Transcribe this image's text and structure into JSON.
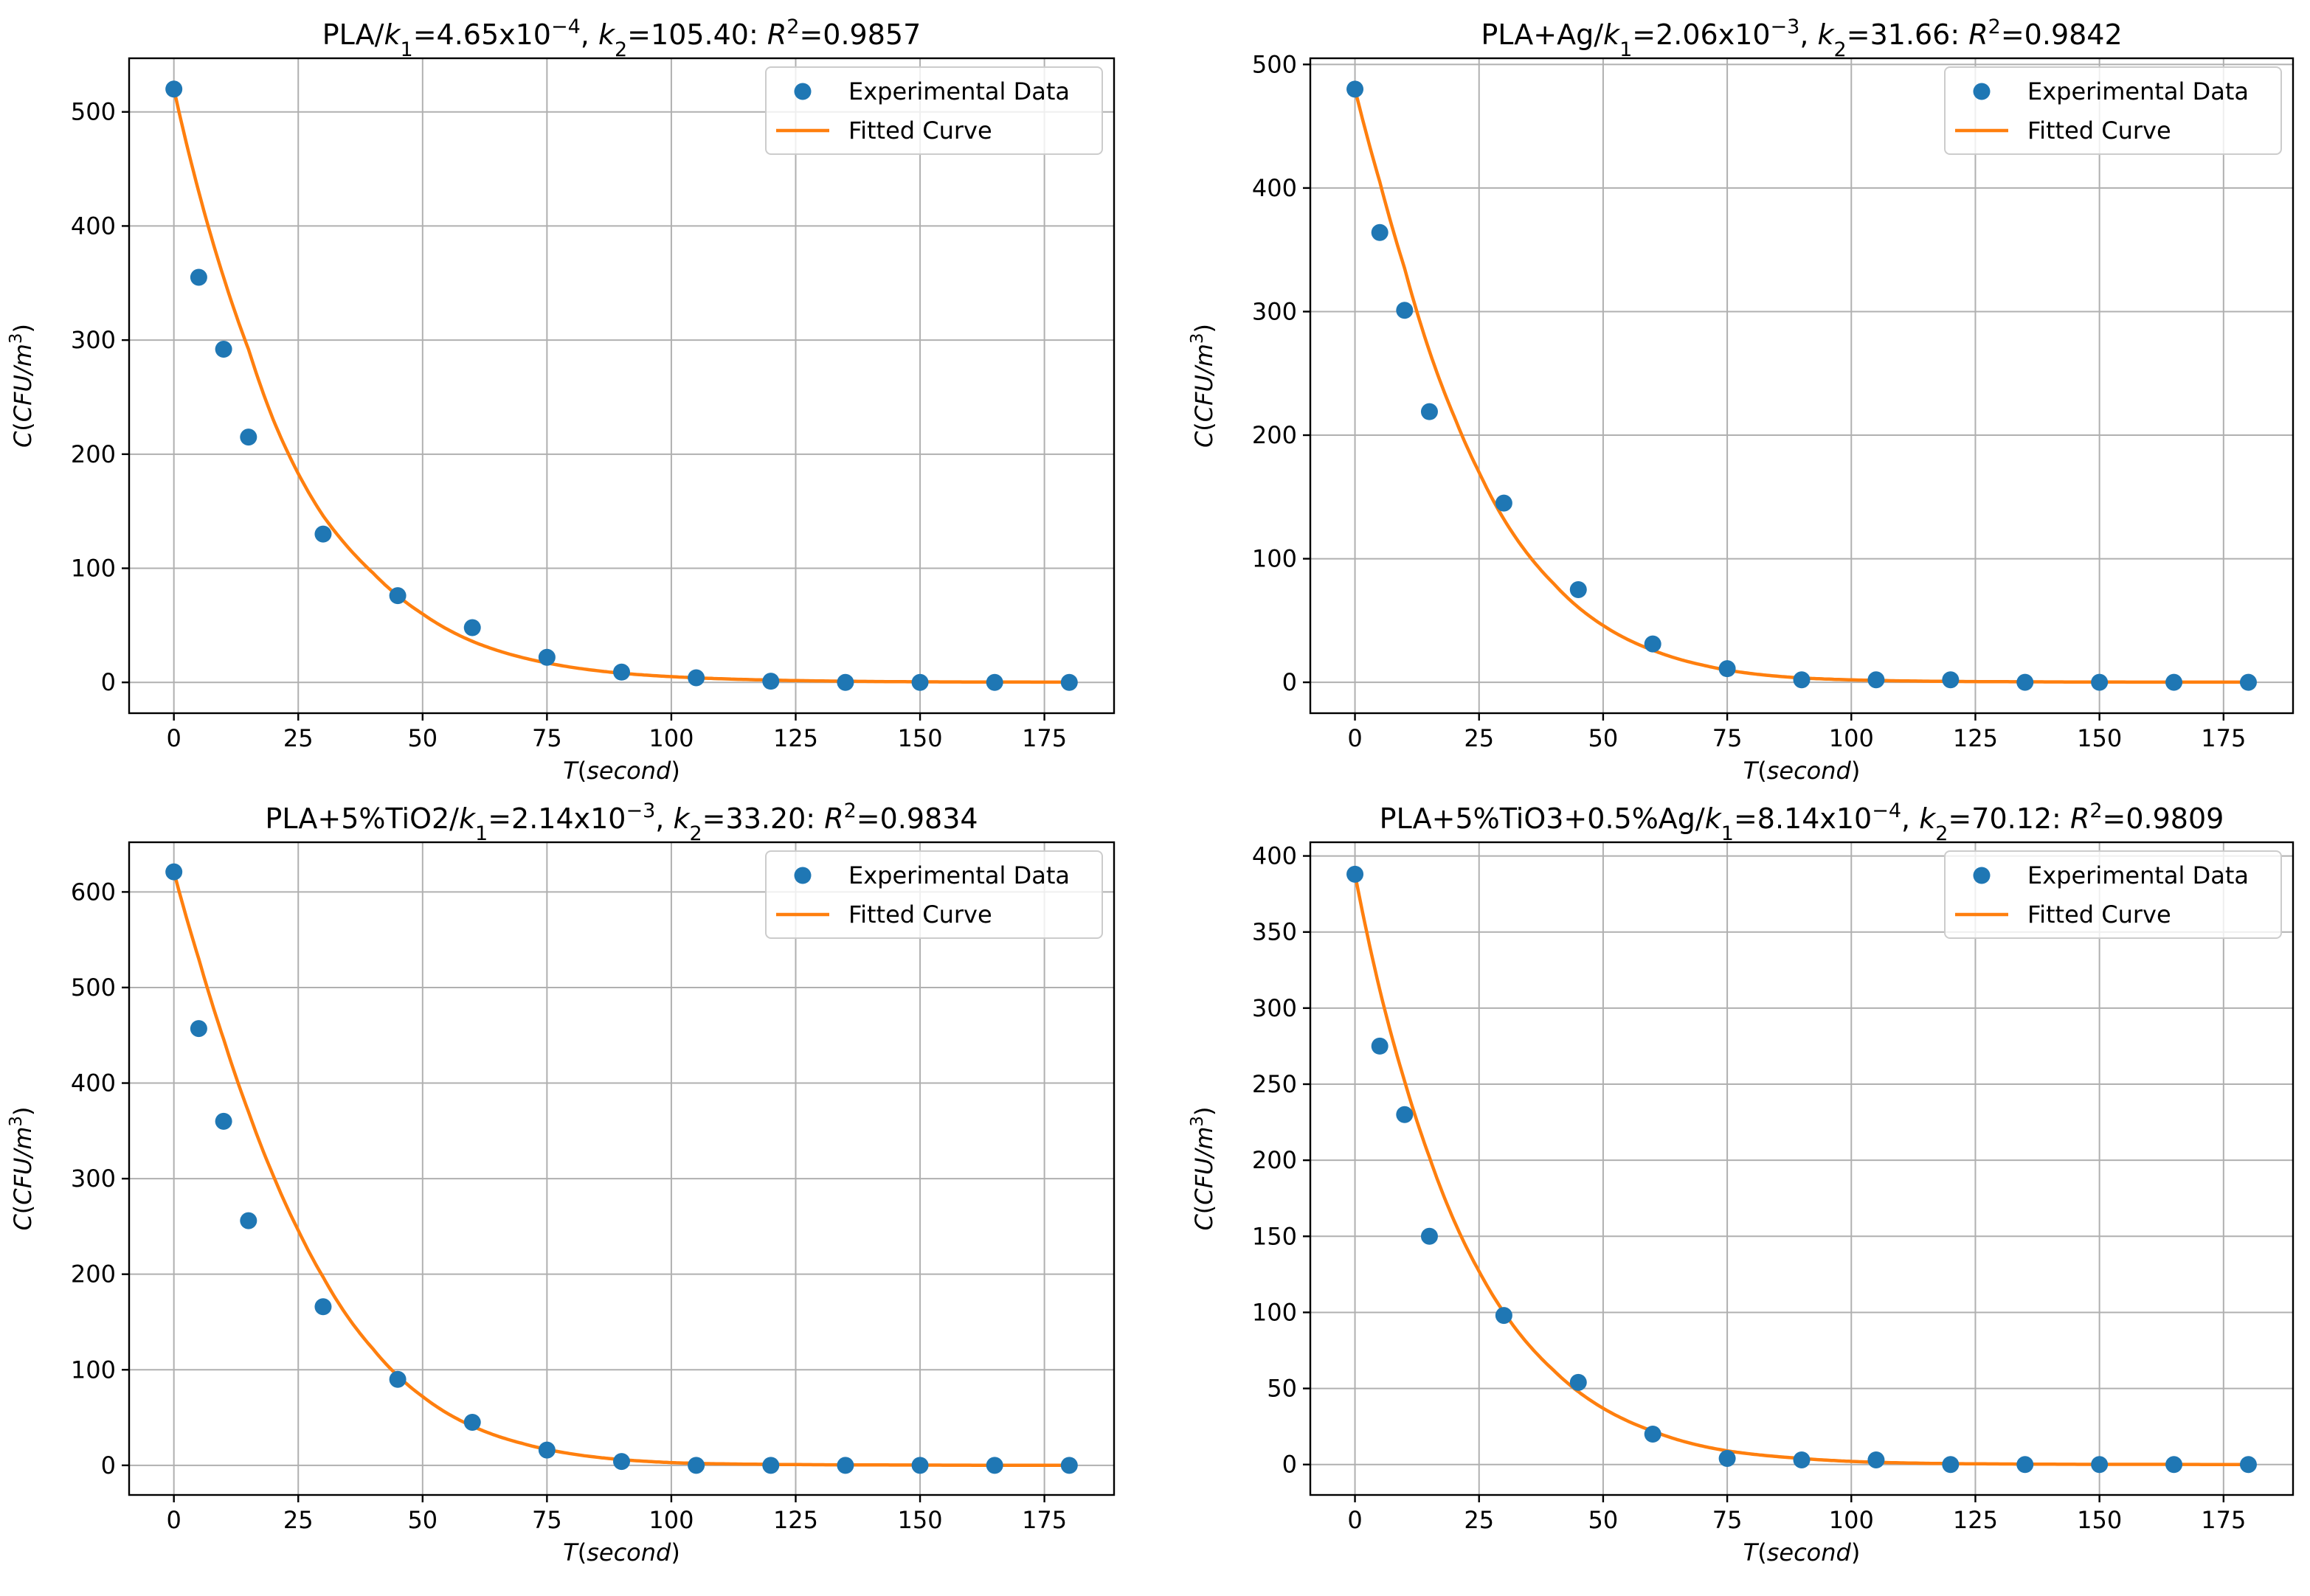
{
  "chart_data": [
    {
      "type": "scatter",
      "title": "PLA/k₁=4.65x10⁻⁴, k₂=105.40: R²=0.9857",
      "title_parts": {
        "pre": "PLA/",
        "k1": "4.65x10",
        "k1_exp": "−4",
        "k2": "105.40",
        "r2": "0.9857"
      },
      "xlabel": "T(second)",
      "ylabel": "C(CFU/m³)",
      "xlim": [
        -9,
        189
      ],
      "ylim": [
        -27,
        547
      ],
      "xticks": [
        0,
        25,
        50,
        75,
        100,
        125,
        150,
        175
      ],
      "yticks": [
        0,
        100,
        200,
        300,
        400,
        500
      ],
      "grid": true,
      "legend": "top-right",
      "series": [
        {
          "name": "Experimental Data",
          "kind": "scatter",
          "color": "#1f77b4",
          "x": [
            0,
            5,
            10,
            15,
            30,
            45,
            60,
            75,
            90,
            105,
            120,
            135,
            150,
            165,
            180
          ],
          "y": [
            520,
            355,
            292,
            215,
            130,
            76,
            48,
            22,
            9,
            4,
            1,
            0,
            0,
            0,
            0
          ]
        },
        {
          "name": "Fitted Curve",
          "kind": "line",
          "color": "#ff7f0e",
          "x": [
            0,
            5,
            10,
            15,
            20,
            25,
            30,
            40,
            50,
            60,
            75,
            90,
            105,
            120,
            135,
            150,
            165,
            180
          ],
          "y": [
            520,
            430,
            355,
            292,
            230,
            183,
            146,
            96,
            60,
            36,
            17,
            8,
            4,
            2,
            1,
            0.5,
            0.3,
            0.2
          ]
        }
      ]
    },
    {
      "type": "scatter",
      "title": "PLA+Ag/k₁=2.06x10⁻³, k₂=31.66: R²=0.9842",
      "title_parts": {
        "pre": "PLA+Ag/",
        "k1": "2.06x10",
        "k1_exp": "−3",
        "k2": "31.66",
        "r2": "0.9842"
      },
      "xlabel": "T(second)",
      "ylabel": "C(CFU/m³)",
      "xlim": [
        -9,
        189
      ],
      "ylim": [
        -25,
        505
      ],
      "xticks": [
        0,
        25,
        50,
        75,
        100,
        125,
        150,
        175
      ],
      "yticks": [
        0,
        100,
        200,
        300,
        400,
        500
      ],
      "grid": true,
      "legend": "top-right",
      "series": [
        {
          "name": "Experimental Data",
          "kind": "scatter",
          "color": "#1f77b4",
          "x": [
            0,
            5,
            10,
            15,
            30,
            45,
            60,
            75,
            90,
            105,
            120,
            135,
            150,
            165,
            180
          ],
          "y": [
            480,
            364,
            301,
            219,
            145,
            75,
            31,
            11,
            2,
            2,
            2,
            0,
            0,
            0,
            0
          ]
        },
        {
          "name": "Fitted Curve",
          "kind": "line",
          "color": "#ff7f0e",
          "x": [
            0,
            5,
            10,
            15,
            20,
            25,
            30,
            40,
            50,
            60,
            70,
            80,
            90,
            105,
            120,
            135,
            150,
            165,
            180
          ],
          "y": [
            480,
            405,
            335,
            268,
            215,
            170,
            132,
            80,
            46,
            26,
            14,
            7,
            3.5,
            1.5,
            0.7,
            0.4,
            0.2,
            0.1,
            0.1
          ]
        }
      ]
    },
    {
      "type": "scatter",
      "title": "PLA+5%TiO2/k₁=2.14x10⁻³, k₂=33.20: R²=0.9834",
      "title_parts": {
        "pre": "PLA+5%TiO2/",
        "k1": "2.14x10",
        "k1_exp": "−3",
        "k2": "33.20",
        "r2": "0.9834"
      },
      "xlabel": "T(second)",
      "ylabel": "C(CFU/m³)",
      "xlim": [
        -9,
        189
      ],
      "ylim": [
        -31,
        652
      ],
      "xticks": [
        0,
        25,
        50,
        75,
        100,
        125,
        150,
        175
      ],
      "yticks": [
        0,
        100,
        200,
        300,
        400,
        500,
        600
      ],
      "grid": true,
      "legend": "top-right",
      "series": [
        {
          "name": "Experimental Data",
          "kind": "scatter",
          "color": "#1f77b4",
          "x": [
            0,
            5,
            10,
            15,
            30,
            45,
            60,
            75,
            90,
            105,
            120,
            135,
            150,
            165,
            180
          ],
          "y": [
            621,
            457,
            360,
            256,
            166,
            90,
            45,
            16,
            4,
            0,
            0,
            0,
            0,
            0,
            0
          ]
        },
        {
          "name": "Fitted Curve",
          "kind": "line",
          "color": "#ff7f0e",
          "x": [
            0,
            5,
            10,
            15,
            20,
            25,
            30,
            40,
            50,
            60,
            70,
            80,
            90,
            105,
            120,
            135,
            150,
            165,
            180
          ],
          "y": [
            621,
            530,
            446,
            370,
            303,
            246,
            197,
            122,
            72,
            41,
            23,
            12,
            6,
            2,
            1,
            0.5,
            0.3,
            0.1,
            0.1
          ]
        }
      ]
    },
    {
      "type": "scatter",
      "title": "PLA+5%TiO3+0.5%Ag/k₁=8.14x10⁻⁴, k₂=70.12: R²=0.9809",
      "title_parts": {
        "pre": "PLA+5%TiO3+0.5%Ag/",
        "k1": "8.14x10",
        "k1_exp": "−4",
        "k2": "70.12",
        "r2": "0.9809"
      },
      "xlabel": "T(second)",
      "ylabel": "C(CFU/m³)",
      "xlim": [
        -9,
        189
      ],
      "ylim": [
        -20,
        409
      ],
      "xticks": [
        0,
        25,
        50,
        75,
        100,
        125,
        150,
        175
      ],
      "yticks": [
        0,
        50,
        100,
        150,
        200,
        250,
        300,
        350,
        400
      ],
      "grid": true,
      "legend": "top-right",
      "series": [
        {
          "name": "Experimental Data",
          "kind": "scatter",
          "color": "#1f77b4",
          "x": [
            0,
            5,
            10,
            15,
            30,
            45,
            60,
            75,
            90,
            105,
            120,
            135,
            150,
            165,
            180
          ],
          "y": [
            388,
            275,
            230,
            150,
            98,
            54,
            20,
            4,
            3,
            3,
            0,
            0,
            0,
            0,
            0
          ]
        },
        {
          "name": "Fitted Curve",
          "kind": "line",
          "color": "#ff7f0e",
          "x": [
            0,
            5,
            10,
            15,
            20,
            25,
            30,
            40,
            50,
            60,
            75,
            90,
            105,
            120,
            135,
            150,
            165,
            180
          ],
          "y": [
            388,
            312,
            252,
            202,
            160,
            127,
            100,
            62,
            37,
            22,
            9,
            4,
            1.5,
            0.6,
            0.3,
            0.1,
            0.1,
            0
          ]
        }
      ]
    }
  ]
}
